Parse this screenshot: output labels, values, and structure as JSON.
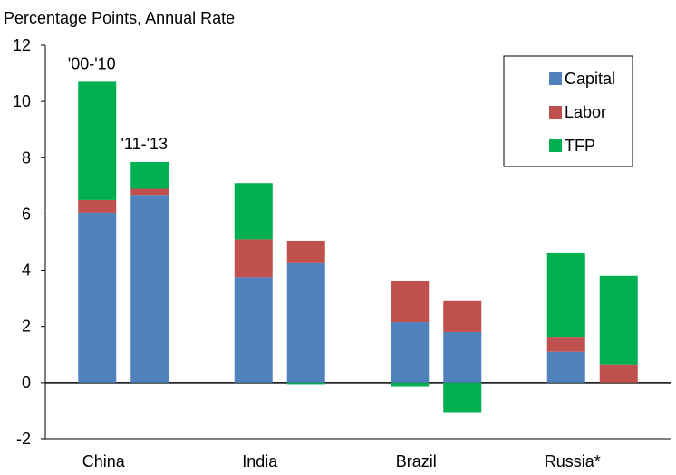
{
  "chart_data": {
    "type": "bar",
    "stacked": true,
    "subtitle": "Percentage Points, Annual Rate",
    "xlabel": "",
    "ylabel": "",
    "ylim": [
      -2,
      12
    ],
    "yticks": [
      "-2",
      "0",
      "2",
      "4",
      "6",
      "8",
      "10",
      "12"
    ],
    "grid": false,
    "legend_position": "top-right",
    "categories": [
      "China",
      "India",
      "Brazil",
      "Russia*"
    ],
    "period_labels": [
      "'00-'10",
      "'11-'13"
    ],
    "bars": [
      {
        "category": "China",
        "period": "'00-'10",
        "Capital": 6.05,
        "Labor": 0.45,
        "TFP": 4.2
      },
      {
        "category": "China",
        "period": "'11-'13",
        "Capital": 6.65,
        "Labor": 0.25,
        "TFP": 0.95
      },
      {
        "category": "India",
        "period": "'00-'10",
        "Capital": 3.75,
        "Labor": 1.35,
        "TFP": 2.0
      },
      {
        "category": "India",
        "period": "'11-'13",
        "Capital": 4.25,
        "Labor": 0.8,
        "TFP": -0.05
      },
      {
        "category": "Brazil",
        "period": "'00-'10",
        "Capital": 2.15,
        "Labor": 1.45,
        "TFP": -0.15
      },
      {
        "category": "Brazil",
        "period": "'11-'13",
        "Capital": 1.8,
        "Labor": 1.1,
        "TFP": -1.05
      },
      {
        "category": "Russia*",
        "period": "'00-'10",
        "Capital": 1.1,
        "Labor": 0.5,
        "TFP": 3.0
      },
      {
        "category": "Russia*",
        "period": "'11-'13",
        "Capital": 0.0,
        "Labor": 0.65,
        "TFP": 3.15
      }
    ],
    "series": [
      {
        "name": "Capital",
        "color": "#4F81BD"
      },
      {
        "name": "Labor",
        "color": "#C0504D"
      },
      {
        "name": "TFP",
        "color": "#00B050"
      }
    ]
  }
}
